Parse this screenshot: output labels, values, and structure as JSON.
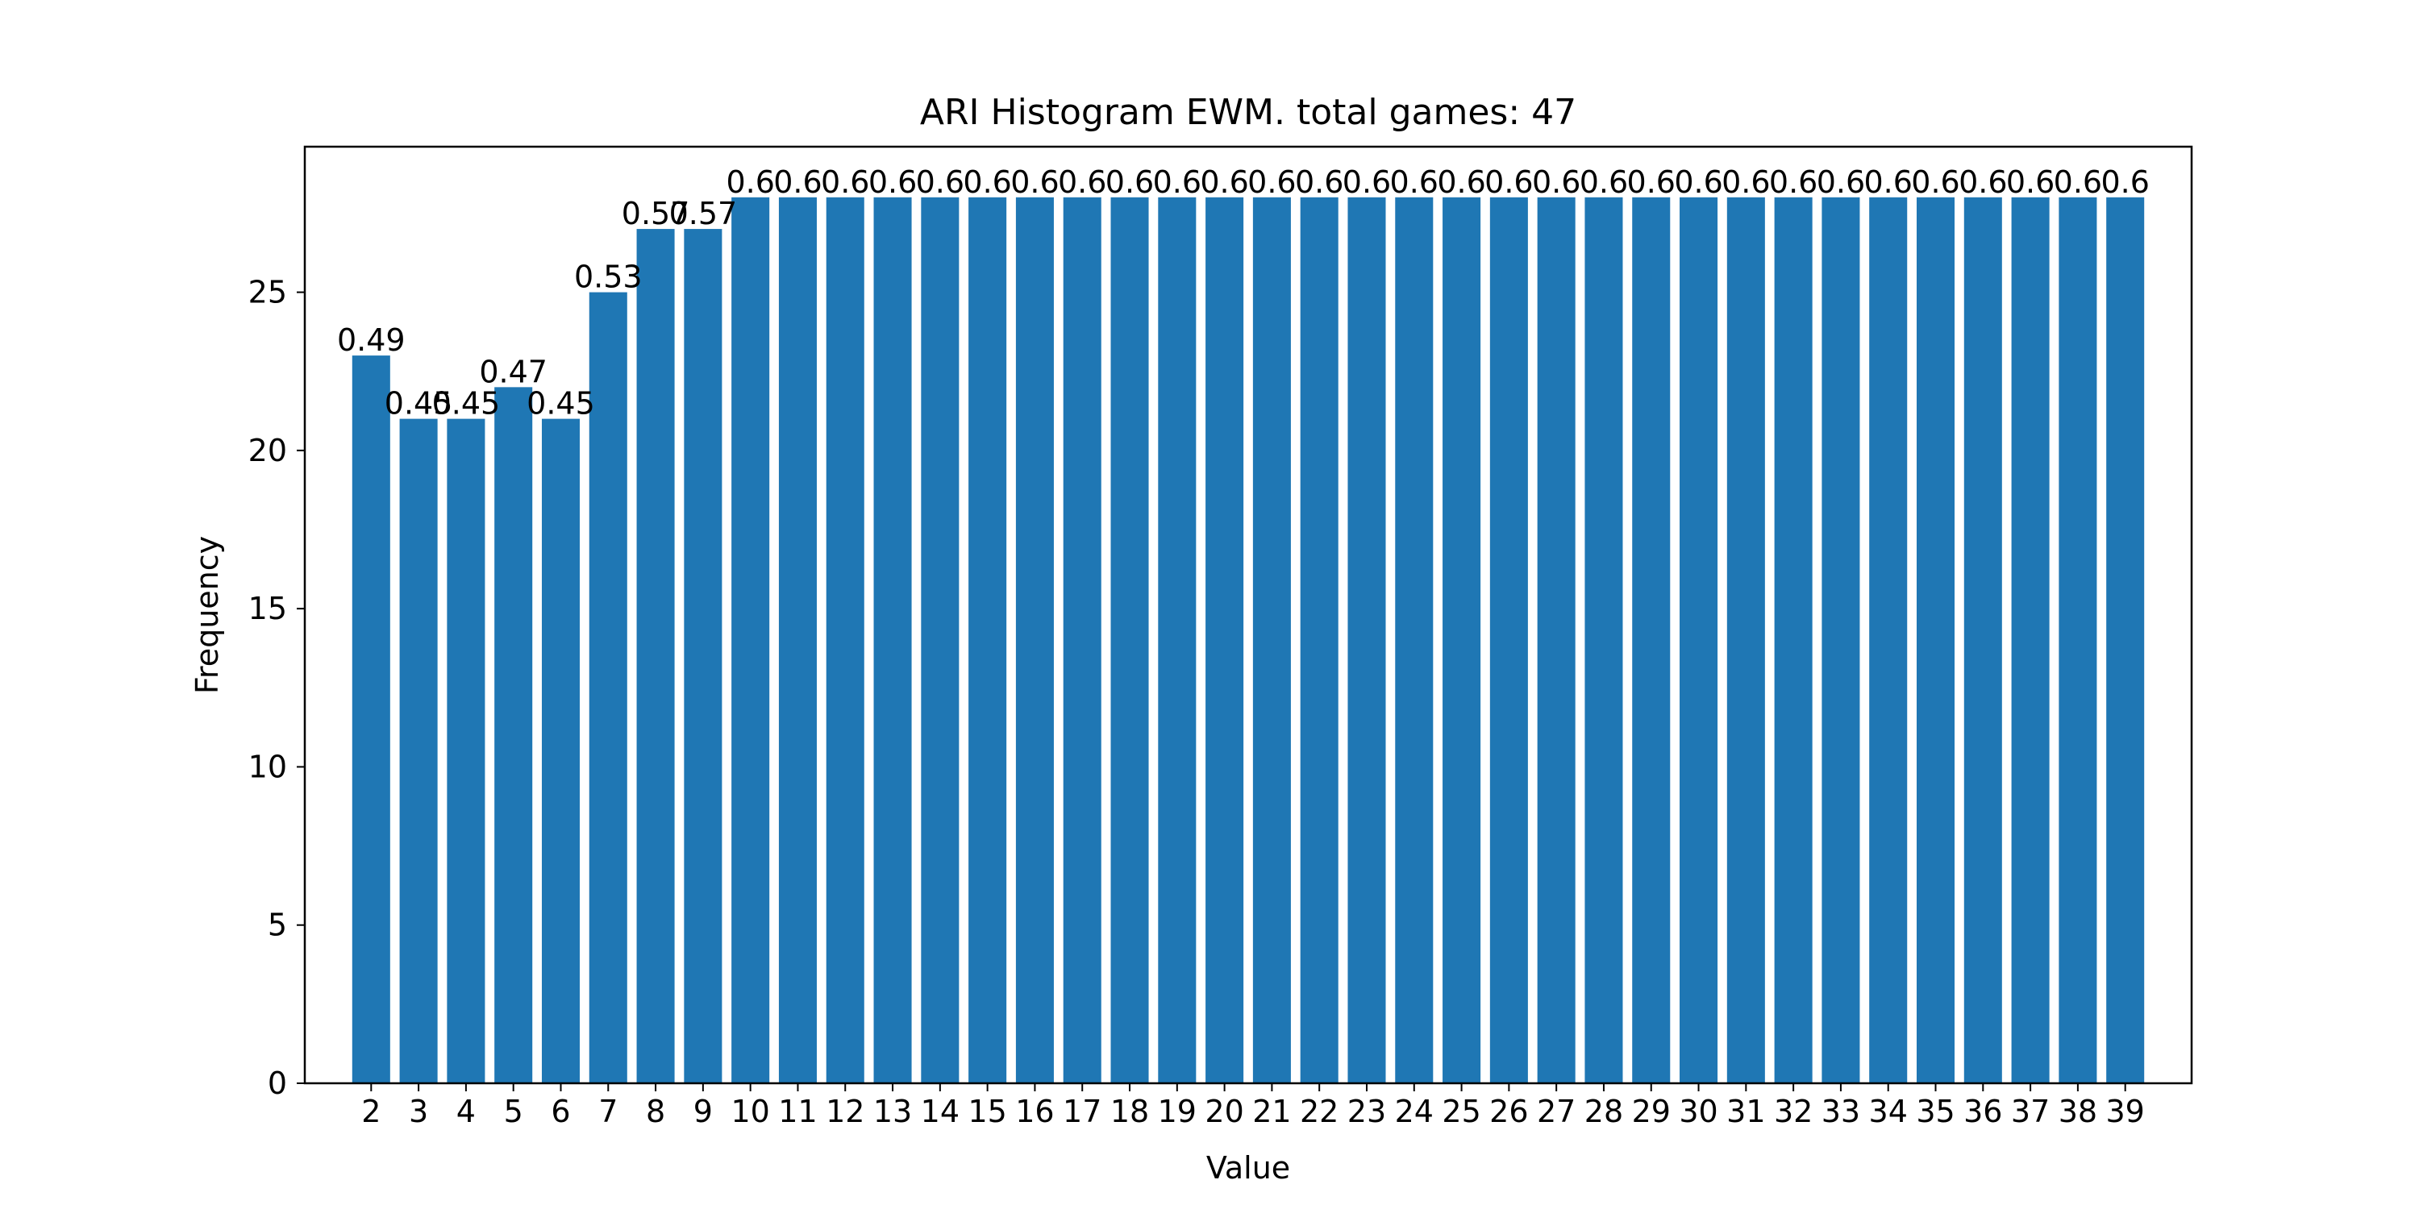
{
  "chart_data": {
    "type": "bar",
    "title": "ARI Histogram EWM. total games: 47",
    "xlabel": "Value",
    "ylabel": "Frequency",
    "ylim": [
      0,
      29.6
    ],
    "yticks": [
      0,
      5,
      10,
      15,
      20,
      25
    ],
    "grid": false,
    "bar_color": "#1f77b4",
    "categories": [
      "2",
      "3",
      "4",
      "5",
      "6",
      "7",
      "8",
      "9",
      "10",
      "11",
      "12",
      "13",
      "14",
      "15",
      "16",
      "17",
      "18",
      "19",
      "20",
      "21",
      "22",
      "23",
      "24",
      "25",
      "26",
      "27",
      "28",
      "29",
      "30",
      "31",
      "32",
      "33",
      "34",
      "35",
      "36",
      "37",
      "38",
      "39"
    ],
    "values": [
      23,
      21,
      21,
      22,
      21,
      25,
      27,
      27,
      28,
      28,
      28,
      28,
      28,
      28,
      28,
      28,
      28,
      28,
      28,
      28,
      28,
      28,
      28,
      28,
      28,
      28,
      28,
      28,
      28,
      28,
      28,
      28,
      28,
      28,
      28,
      28,
      28,
      28
    ],
    "data_labels": [
      "0.49",
      "0.45",
      "0.45",
      "0.47",
      "0.45",
      "0.53",
      "0.57",
      "0.57",
      "0.6",
      "0.6",
      "0.6",
      "0.6",
      "0.6",
      "0.6",
      "0.6",
      "0.6",
      "0.6",
      "0.6",
      "0.6",
      "0.6",
      "0.6",
      "0.6",
      "0.6",
      "0.6",
      "0.6",
      "0.6",
      "0.6",
      "0.6",
      "0.6",
      "0.6",
      "0.6",
      "0.6",
      "0.6",
      "0.6",
      "0.6",
      "0.6",
      "0.6",
      "0.6"
    ]
  }
}
